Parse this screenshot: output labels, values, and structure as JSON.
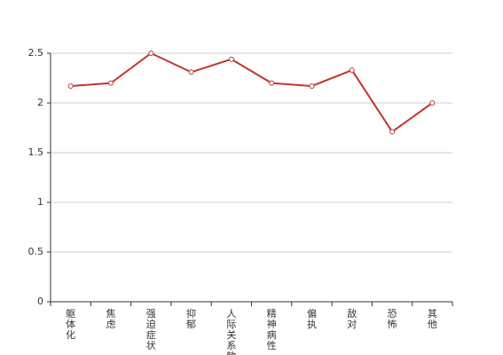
{
  "chart_data": {
    "type": "line",
    "categories": [
      "躯体化",
      "焦虑",
      "强迫症状",
      "抑郁",
      "人际关系敏感",
      "精神病性",
      "偏执",
      "敌对",
      "恐怖",
      "其他"
    ],
    "values": [
      2.17,
      2.2,
      2.5,
      2.31,
      2.44,
      2.2,
      2.17,
      2.33,
      1.71,
      2.0
    ],
    "color": "#c23531",
    "ylim": [
      0,
      2.5
    ],
    "yticks": [
      0,
      0.5,
      1,
      1.5,
      2,
      2.5
    ],
    "grid": true
  }
}
